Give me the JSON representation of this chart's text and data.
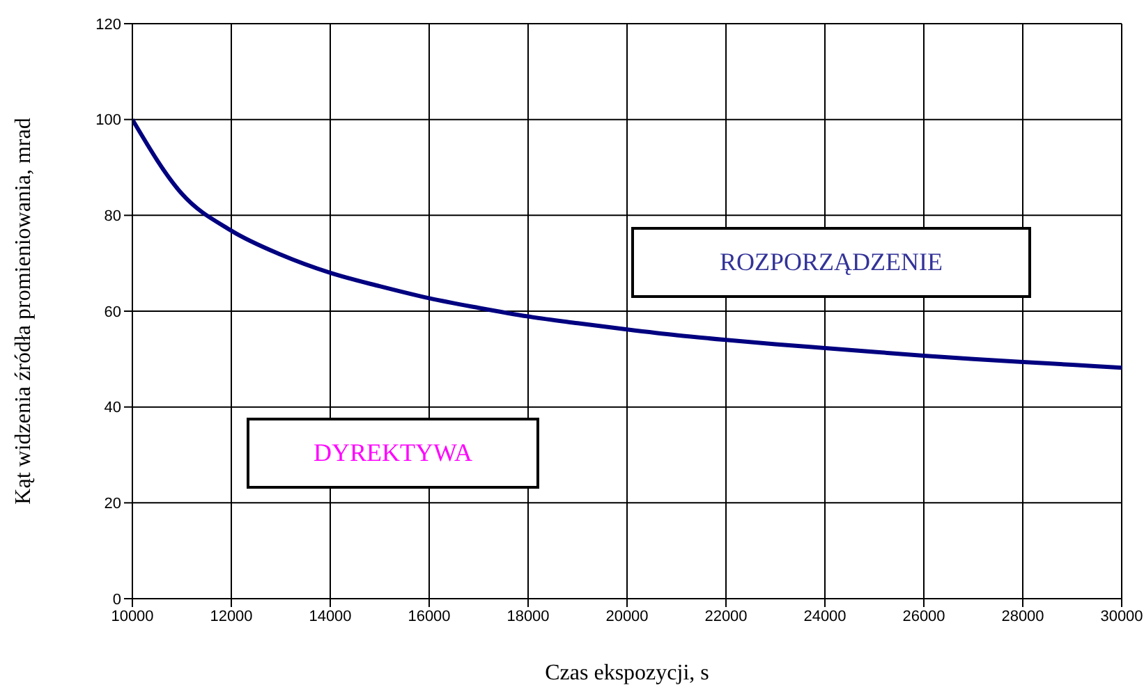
{
  "chart_data": {
    "type": "line",
    "xlabel": "Czas ekspozycji, s",
    "ylabel": "Kąt widzenia źródła promieniowania, mrad",
    "x": [
      10000,
      11000,
      12000,
      13000,
      14000,
      15000,
      16000,
      17000,
      18000,
      19000,
      20000,
      21000,
      22000,
      23000,
      24000,
      25000,
      26000,
      27000,
      28000,
      29000,
      30000
    ],
    "series": [
      {
        "color": "#000080",
        "values": [
          100,
          84.5,
          76.8,
          71.8,
          68,
          65.2,
          62.7,
          60.7,
          58.9,
          57.5,
          56.2,
          55,
          54,
          53.1,
          52.3,
          51.5,
          50.7,
          50,
          49.4,
          48.8,
          48.2
        ]
      }
    ],
    "xlim": [
      10000,
      30000
    ],
    "xticks": [
      10000,
      12000,
      14000,
      16000,
      18000,
      20000,
      22000,
      24000,
      26000,
      28000,
      30000
    ],
    "ylim": [
      0,
      120
    ],
    "yticks": [
      0,
      20,
      40,
      60,
      80,
      100,
      120
    ],
    "annotations": [
      "ROZPORZĄDZENIE",
      "DYREKTYWA"
    ],
    "grid": true,
    "marker": "none",
    "line_style": "solid"
  }
}
